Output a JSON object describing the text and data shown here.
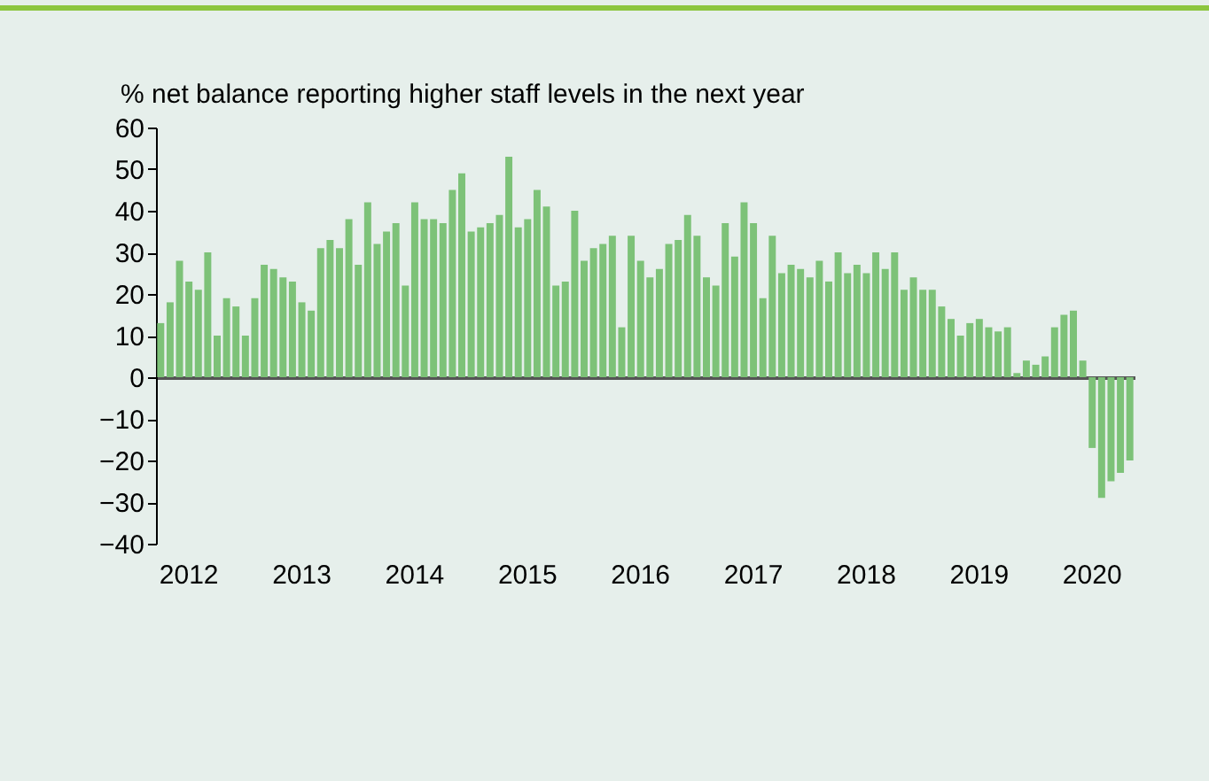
{
  "chart_data": {
    "type": "bar",
    "title": "% net balance reporting higher staff levels in the next year",
    "categories": [
      null,
      null,
      null,
      "2012",
      null,
      null,
      null,
      null,
      null,
      null,
      null,
      null,
      null,
      null,
      null,
      "2013",
      null,
      null,
      null,
      null,
      null,
      null,
      null,
      null,
      null,
      null,
      null,
      "2014",
      null,
      null,
      null,
      null,
      null,
      null,
      null,
      null,
      null,
      null,
      null,
      "2015",
      null,
      null,
      null,
      null,
      null,
      null,
      null,
      null,
      null,
      null,
      null,
      "2016",
      null,
      null,
      null,
      null,
      null,
      null,
      null,
      null,
      null,
      null,
      null,
      "2017",
      null,
      null,
      null,
      null,
      null,
      null,
      null,
      null,
      null,
      null,
      null,
      "2018",
      null,
      null,
      null,
      null,
      null,
      null,
      null,
      null,
      null,
      null,
      null,
      "2019",
      null,
      null,
      null,
      null,
      null,
      null,
      null,
      null,
      null,
      null,
      null,
      "2020",
      null,
      null,
      null,
      null
    ],
    "values": [
      13,
      18,
      28,
      23,
      21,
      30,
      10,
      19,
      17,
      10,
      19,
      27,
      26,
      24,
      23,
      18,
      16,
      31,
      33,
      31,
      38,
      27,
      42,
      32,
      35,
      37,
      22,
      42,
      38,
      38,
      37,
      45,
      49,
      35,
      36,
      37,
      39,
      53,
      36,
      38,
      45,
      41,
      22,
      23,
      40,
      28,
      31,
      32,
      34,
      12,
      34,
      28,
      24,
      26,
      32,
      33,
      39,
      34,
      24,
      22,
      37,
      29,
      42,
      37,
      19,
      34,
      25,
      27,
      26,
      24,
      28,
      23,
      30,
      25,
      27,
      25,
      30,
      26,
      30,
      21,
      24,
      21,
      21,
      17,
      14,
      10,
      13,
      14,
      12,
      11,
      12,
      1,
      4,
      3,
      5,
      12,
      15,
      16,
      4,
      -17,
      -29,
      -25,
      -23,
      -20
    ],
    "color": "#7dc278",
    "ylim": [
      -40,
      60
    ],
    "yticks": [
      -40,
      -30,
      -20,
      -10,
      0,
      10,
      20,
      30,
      40,
      50,
      60
    ]
  }
}
